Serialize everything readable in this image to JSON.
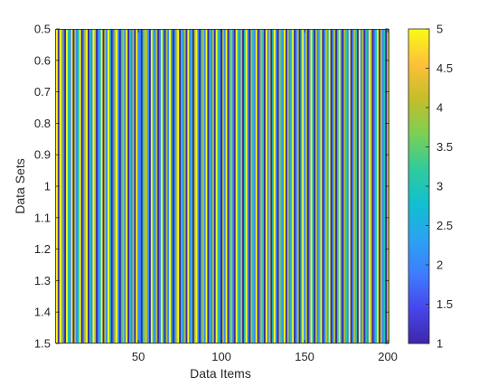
{
  "chart_data": {
    "type": "heatmap",
    "title": "",
    "xlabel": "Data Items",
    "ylabel": "Data Sets",
    "xlim": [
      0.5,
      200.5
    ],
    "ylim": [
      0.5,
      1.5
    ],
    "y_direction": "reverse",
    "grid": false,
    "x_ticks": [
      {
        "value": 50,
        "label": "50"
      },
      {
        "value": 100,
        "label": "100"
      },
      {
        "value": 150,
        "label": "150"
      },
      {
        "value": 200,
        "label": "200"
      }
    ],
    "y_ticks": [
      {
        "value": 0.5,
        "label": "0.5"
      },
      {
        "value": 0.6,
        "label": "0.6"
      },
      {
        "value": 0.7,
        "label": "0.7"
      },
      {
        "value": 0.8,
        "label": "0.8"
      },
      {
        "value": 0.9,
        "label": "0.9"
      },
      {
        "value": 1.0,
        "label": "1"
      },
      {
        "value": 1.1,
        "label": "1.1"
      },
      {
        "value": 1.2,
        "label": "1.2"
      },
      {
        "value": 1.3,
        "label": "1.3"
      },
      {
        "value": 1.4,
        "label": "1.4"
      },
      {
        "value": 1.5,
        "label": "1.5"
      }
    ],
    "colorbar": {
      "range": [
        1,
        5
      ],
      "placement": "right",
      "ticks": [
        {
          "value": 1,
          "label": "1"
        },
        {
          "value": 1.5,
          "label": "1.5"
        },
        {
          "value": 2,
          "label": "2"
        },
        {
          "value": 2.5,
          "label": "2.5"
        },
        {
          "value": 3,
          "label": "3"
        },
        {
          "value": 3.5,
          "label": "3.5"
        },
        {
          "value": 4,
          "label": "4"
        },
        {
          "value": 4.5,
          "label": "4.5"
        },
        {
          "value": 5,
          "label": "5"
        }
      ],
      "colormap": [
        "#3e26a8",
        "#4746eb",
        "#3e7dfe",
        "#2aa3f0",
        "#12bfd0",
        "#30cb9b",
        "#7ccf55",
        "#c5bd29",
        "#fdc03a",
        "#f9fb15"
      ]
    },
    "values": [
      5,
      1,
      5,
      4,
      2,
      1,
      5,
      3,
      2,
      5,
      1,
      4,
      2,
      3,
      5,
      1,
      2,
      4,
      5,
      1,
      3,
      2,
      5,
      4,
      1,
      2,
      3,
      5,
      1,
      4,
      2,
      5,
      3,
      1,
      2,
      4,
      5,
      2,
      1,
      3,
      4,
      2,
      5,
      1,
      3,
      2,
      4,
      1,
      5,
      2,
      2,
      1,
      3,
      4,
      4,
      2,
      1,
      5,
      3,
      2,
      4,
      1,
      2,
      5,
      3,
      1,
      4,
      2,
      5,
      3,
      1,
      2,
      4,
      5,
      1,
      3,
      2,
      4,
      1,
      5,
      2,
      3,
      1,
      4,
      5,
      2,
      1,
      3,
      4,
      2,
      5,
      1,
      3,
      2,
      4,
      1,
      5,
      3,
      2,
      1,
      4,
      2,
      5,
      1,
      3,
      4,
      2,
      1,
      5,
      3,
      2,
      4,
      1,
      3,
      5,
      2,
      1,
      4,
      3,
      2,
      5,
      1,
      2,
      4,
      3,
      1,
      5,
      2,
      4,
      1,
      3,
      5,
      2,
      1,
      4,
      3,
      2,
      5,
      1,
      4,
      2,
      3,
      5,
      1,
      2,
      4,
      1,
      3,
      5,
      2,
      4,
      1,
      2,
      5,
      3,
      1,
      4,
      2,
      3,
      5,
      1,
      2,
      4,
      3,
      5,
      1,
      2,
      4,
      1,
      3,
      5,
      2,
      1,
      4,
      3,
      2,
      5,
      1,
      2,
      4,
      3,
      1,
      5,
      2,
      4,
      1,
      3,
      2,
      5,
      4,
      1,
      2,
      3,
      5,
      1,
      4,
      2,
      3,
      1,
      4
    ]
  }
}
